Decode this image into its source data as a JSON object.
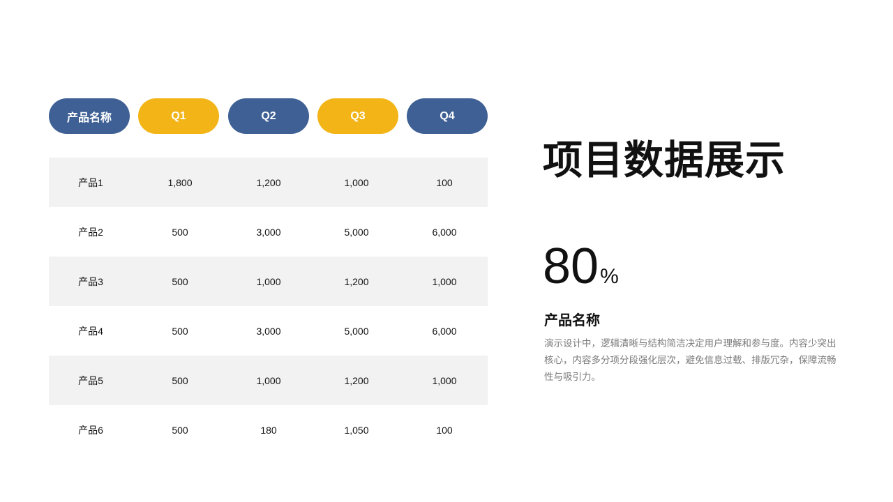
{
  "colors": {
    "blue": "#3f6094",
    "yellow": "#f2b417",
    "row_shade": "#f2f2f2"
  },
  "table": {
    "headers": [
      "产品名称",
      "Q1",
      "Q2",
      "Q3",
      "Q4"
    ],
    "rows": [
      [
        "产品1",
        "1,800",
        "1,200",
        "1,000",
        "100"
      ],
      [
        "产品2",
        "500",
        "3,000",
        "5,000",
        "6,000"
      ],
      [
        "产品3",
        "500",
        "1,000",
        "1,200",
        "1,000"
      ],
      [
        "产品4",
        "500",
        "3,000",
        "5,000",
        "6,000"
      ],
      [
        "产品5",
        "500",
        "1,000",
        "1,200",
        "1,000"
      ],
      [
        "产品6",
        "500",
        "180",
        "1,050",
        "100"
      ]
    ]
  },
  "title": "项目数据展示",
  "stat": {
    "value": "80",
    "unit": "%"
  },
  "subtitle": "产品名称",
  "description": "演示设计中，逻辑清晰与结构简洁决定用户理解和参与度。内容少突出核心，内容多分项分段强化层次，避免信息过载、排版冗杂，保障流畅性与吸引力。"
}
